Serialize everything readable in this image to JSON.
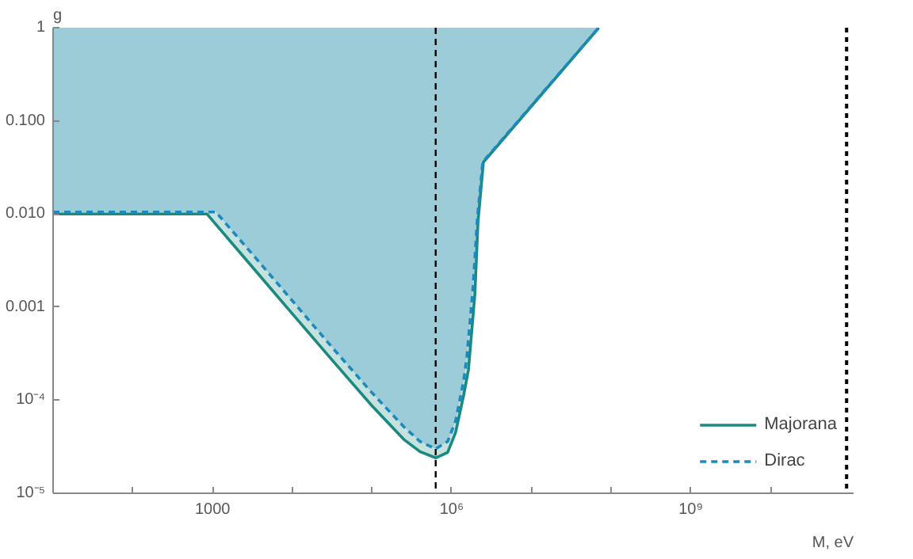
{
  "chart_data": {
    "type": "area",
    "xlabel": "M, eV",
    "ylabel": "g",
    "log": "xy",
    "grid": false,
    "legend": "bottom right",
    "xlim": [
      10,
      110000000000.0
    ],
    "ylim": [
      1e-05,
      1
    ],
    "xticks": [
      {
        "value": 100,
        "label": null
      },
      {
        "value": 1000,
        "label": "1000"
      },
      {
        "value": 10000,
        "label": null
      },
      {
        "value": 100000,
        "label": null
      },
      {
        "value": 1000000,
        "label": "10⁶"
      },
      {
        "value": 10000000,
        "label": null
      },
      {
        "value": 100000000,
        "label": null
      },
      {
        "value": 1000000000,
        "label": "10⁹"
      },
      {
        "value": 10000000000,
        "label": null
      }
    ],
    "yticks": [
      {
        "value": 1e-05,
        "label": "10⁻⁵"
      },
      {
        "value": 0.0001,
        "label": "10⁻⁴"
      },
      {
        "value": 0.001,
        "label": "0.001"
      },
      {
        "value": 0.01,
        "label": "0.010"
      },
      {
        "value": 0.1,
        "label": "0.100"
      },
      {
        "value": 1,
        "label": "1"
      }
    ],
    "ref_lines": [
      {
        "axis": "x",
        "value": 630000,
        "label": null,
        "color": "#000000",
        "line_style": "dashed"
      },
      {
        "axis": "x",
        "value": 90000000000.0,
        "label": null,
        "color": "#000000",
        "line_style": "dotted"
      }
    ],
    "series": [
      {
        "name": "Majorana",
        "color": "#1a8a80",
        "line_style": "solid",
        "x": [
          10,
          850,
          3160,
          10000,
          31600,
          100000,
          250000,
          400000,
          630000,
          890000,
          1120000,
          1410000,
          1620000,
          1950000,
          2140000,
          2500000,
          70000000
        ],
        "values": [
          0.01,
          0.01,
          0.00269,
          0.00085,
          0.00027,
          8.7e-05,
          3.8e-05,
          2.8e-05,
          2.4e-05,
          2.75e-05,
          4.5e-05,
          0.000112,
          0.00021,
          0.00135,
          0.0083,
          0.036,
          1
        ]
      },
      {
        "name": "Dirac",
        "color": "#1a8ac0",
        "line_style": "dashed",
        "x": [
          10,
          1100,
          3160,
          10000,
          31600,
          100000,
          250000,
          400000,
          630000,
          890000,
          1120000,
          1410000,
          1550000,
          1850000,
          2100000,
          2450000,
          70000000
        ],
        "values": [
          0.0105,
          0.0105,
          0.0037,
          0.00117,
          0.00037,
          0.00012,
          5.2e-05,
          3.6e-05,
          3e-05,
          3.6e-05,
          6e-05,
          0.00016,
          0.00029,
          0.0016,
          0.009,
          0.036,
          1
        ]
      }
    ]
  }
}
